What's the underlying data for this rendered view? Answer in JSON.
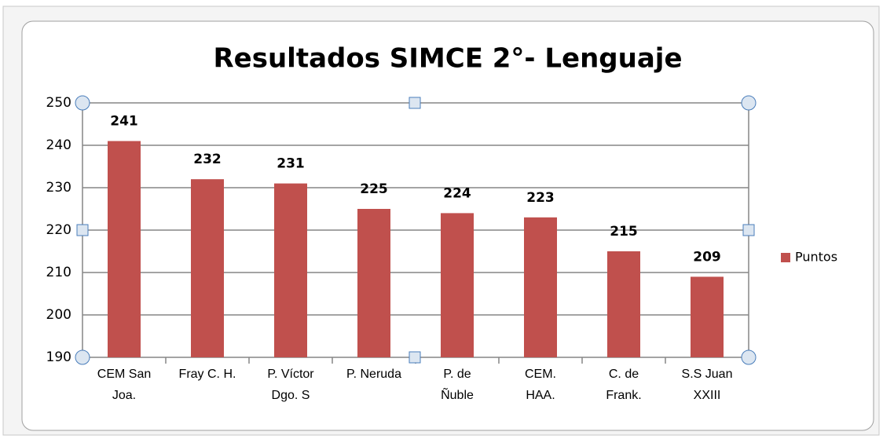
{
  "chart_data": {
    "type": "bar",
    "title": "Resultados SIMCE 2°- Lenguaje",
    "categories": [
      "CEM San\nJoa.",
      "Fray C. H.",
      "P. Víctor\nDgo. S",
      "P. Neruda",
      "P. de\nÑuble",
      "CEM.\nHAA.",
      "C. de\nFrank.",
      "S.S Juan\nXXIII"
    ],
    "series": [
      {
        "name": "Puntos",
        "color": "#c0504d",
        "values": [
          241,
          232,
          231,
          225,
          224,
          223,
          215,
          209
        ]
      }
    ],
    "ylim": [
      190,
      250
    ],
    "yticks": [
      190,
      200,
      210,
      220,
      230,
      240,
      250
    ],
    "grid": true,
    "legend": "right"
  }
}
